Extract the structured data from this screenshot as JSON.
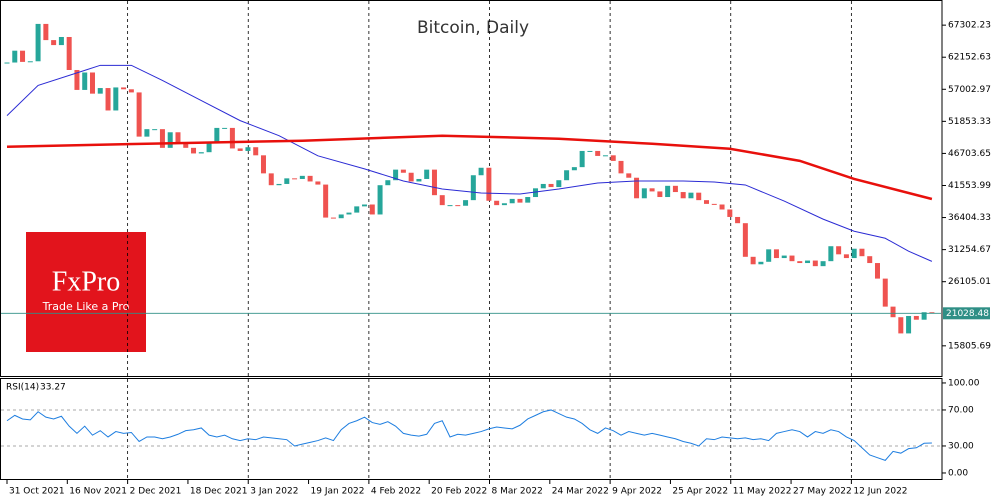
{
  "chart_data": [
    {
      "type": "candlestick",
      "title": "Bitcoin, Daily",
      "values": [
        61300,
        63200,
        61400,
        61500,
        67500,
        64900,
        64100,
        65400,
        60100,
        56900,
        59700,
        56300,
        57200,
        53600,
        57300,
        57000,
        56500,
        49400,
        50600,
        50600,
        47600,
        50100,
        48400,
        47600,
        46700,
        46900,
        48600,
        50800,
        50800,
        47500,
        47100,
        47700,
        46400,
        43500,
        41600,
        41800,
        42700,
        42600,
        43100,
        42200,
        41700,
        36400,
        36300,
        36900,
        37200,
        38200,
        38500,
        36900,
        41600,
        42400,
        44100,
        43600,
        42200,
        42600,
        44100,
        40000,
        38400,
        38400,
        38300,
        39200,
        43200,
        44400,
        39100,
        38400,
        38700,
        39400,
        38800,
        39700,
        41100,
        41800,
        41300,
        42400,
        44000,
        44500,
        47100,
        47100,
        46300,
        46400,
        45500,
        43500,
        42800,
        39500,
        41100,
        40600,
        39700,
        41500,
        40500,
        39500,
        40400,
        39200,
        38600,
        38500,
        37700,
        36500,
        35500,
        30100,
        28900,
        29300,
        31300,
        29900,
        30300,
        29400,
        29100,
        29500,
        28600,
        29400,
        31800,
        30500,
        29900,
        31400,
        30200,
        29100,
        26600,
        22100,
        20400,
        17800,
        20600,
        20000,
        21200,
        21028.48
      ],
      "up_color": "#26a69a",
      "down_color": "#ef5350",
      "overlays": [
        {
          "color": "#2b2bd4",
          "x": [
            0,
            4,
            10,
            12,
            16,
            20,
            25,
            30,
            35,
            40,
            46,
            51,
            56,
            61,
            66,
            71,
            76,
            81,
            87,
            91,
            95,
            100,
            105,
            109,
            113,
            116,
            119
          ],
          "values": [
            52780,
            57620,
            60040,
            60850,
            60850,
            58430,
            55200,
            51970,
            49550,
            46320,
            44220,
            42280,
            40990,
            40350,
            40180,
            40990,
            41960,
            42280,
            42280,
            42120,
            41640,
            39050,
            36150,
            34210,
            33080,
            31000,
            29370
          ]
        },
        {
          "color": "#e8100c",
          "x": [
            0,
            18,
            38,
            56,
            71,
            83,
            93,
            102,
            109,
            119
          ],
          "values": [
            47770,
            48260,
            48740,
            49550,
            49060,
            48260,
            47450,
            45510,
            42610,
            39380
          ]
        }
      ],
      "last_price": 21028.48,
      "last_price_color": "#2f8f86",
      "ylim": [
        10800,
        71340
      ],
      "yticks": [
        15805.69,
        26105.01,
        31254.67,
        36404.33,
        41553.99,
        46703.65,
        51853.33,
        57002.97,
        62152.63,
        67302.23
      ],
      "xlim": [
        -0.9,
        120.3
      ],
      "xticks": [
        {
          "value": 0,
          "label": "31 Oct 2021"
        },
        {
          "value": 7.76,
          "label": "16 Nov 2021"
        },
        {
          "value": 15.52,
          "label": "2 Dec 2021"
        },
        {
          "value": 23.28,
          "label": "18 Dec 2021"
        },
        {
          "value": 31.04,
          "label": "3 Jan 2022"
        },
        {
          "value": 38.8,
          "label": "19 Jan 2022"
        },
        {
          "value": 46.56,
          "label": "4 Feb 2022"
        },
        {
          "value": 54.32,
          "label": "20 Feb 2022"
        },
        {
          "value": 62.08,
          "label": "8 Mar 2022"
        },
        {
          "value": 69.84,
          "label": "24 Mar 2022"
        },
        {
          "value": 77.6,
          "label": "9 Apr 2022"
        },
        {
          "value": 85.36,
          "label": "25 Apr 2022"
        },
        {
          "value": 93.12,
          "label": "11 May 2022"
        },
        {
          "value": 100.88,
          "label": "27 May 2022"
        },
        {
          "value": 108.64,
          "label": "12 Jun 2022"
        }
      ]
    },
    {
      "type": "line",
      "title": "RSI(14)",
      "color": "#1e7ee0",
      "values": [
        58,
        64,
        60,
        59,
        68,
        62,
        60,
        63,
        52,
        44,
        52,
        42,
        47,
        40,
        46,
        44,
        45,
        35,
        40,
        40,
        38,
        40,
        43,
        47,
        48,
        50,
        42,
        40,
        42,
        38,
        36,
        38,
        37,
        40,
        39,
        38,
        37,
        30,
        32,
        34,
        36,
        39,
        36,
        48,
        55,
        58,
        62,
        56,
        54,
        57,
        52,
        44,
        42,
        41,
        43,
        55,
        58,
        40,
        43,
        42,
        44,
        46,
        49,
        51,
        50,
        49,
        53,
        60,
        64,
        68,
        70,
        66,
        62,
        60,
        55,
        48,
        44,
        50,
        47,
        42,
        46,
        44,
        42,
        44,
        42,
        40,
        38,
        35,
        33,
        30,
        38,
        37,
        40,
        39,
        38,
        39,
        37,
        38,
        36,
        44,
        46,
        48,
        46,
        40,
        46,
        44,
        48,
        46,
        40,
        36,
        28,
        20,
        17,
        14,
        24,
        22,
        27,
        28,
        33,
        33.27
      ],
      "ylim": [
        -7.8,
        105.5
      ],
      "xlim": [
        -0.9,
        120.3
      ],
      "yticks": [
        {
          "value": 0,
          "label": "0.00"
        },
        {
          "value": 30,
          "label": "30.00"
        },
        {
          "value": 70,
          "label": "70.00"
        },
        {
          "value": 100,
          "label": "100.00"
        }
      ],
      "levels": [
        30,
        70
      ]
    }
  ],
  "logo": {
    "title": "FxPro",
    "tagline": "Trade Like a Pro"
  }
}
